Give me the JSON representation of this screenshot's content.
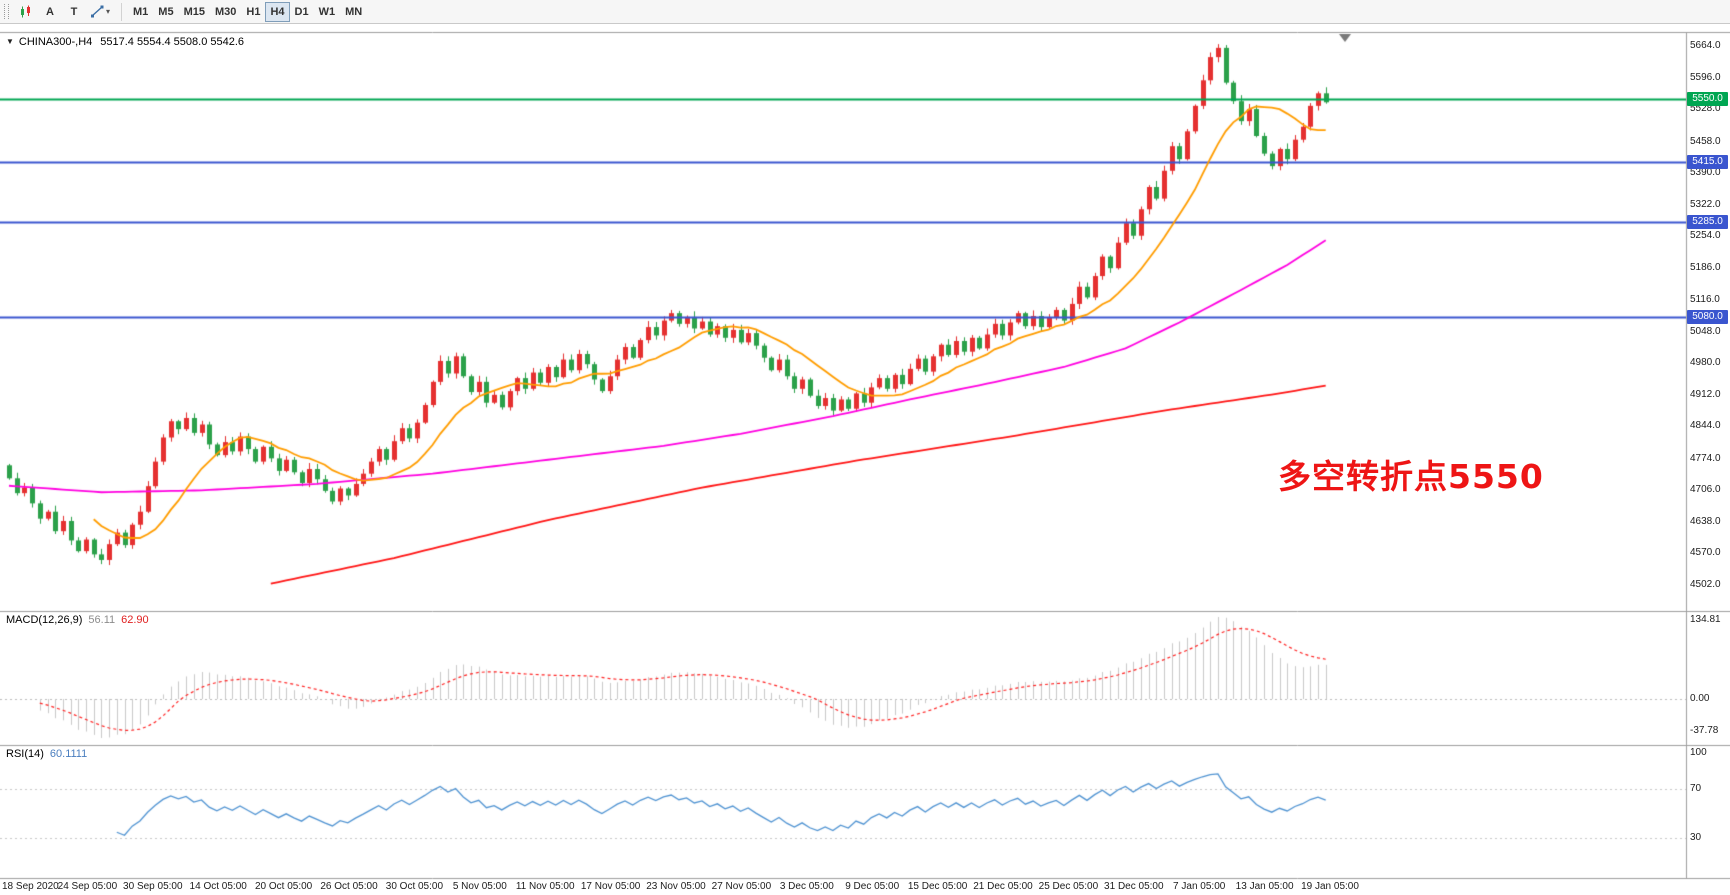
{
  "toolbar": {
    "tool_a": "A",
    "tool_t": "T",
    "active": "H4",
    "timeframes": [
      {
        "label": "M1"
      },
      {
        "label": "M5"
      },
      {
        "label": "M15"
      },
      {
        "label": "M30"
      },
      {
        "label": "H1"
      },
      {
        "label": "H4"
      },
      {
        "label": "D1"
      },
      {
        "label": "W1"
      },
      {
        "label": "MN"
      }
    ]
  },
  "chart_header": {
    "symbol": "CHINA300-,H4",
    "ohlc": "5517.4 5554.4 5508.0 5542.6"
  },
  "annotation": {
    "text": "多空转折点5550"
  },
  "panels": {
    "macd": {
      "title": "MACD(12,26,9)",
      "value_main": "56.11",
      "value_signal": "62.90",
      "scale_labels": [
        "134.81",
        "0.00",
        "-37.78"
      ]
    },
    "rsi": {
      "title": "RSI(14)",
      "value": "60.1111",
      "scale_labels": [
        "100",
        "70",
        "30"
      ]
    }
  },
  "time_axis": {
    "labels": [
      "18 Sep 2020",
      "24 Sep 05:00",
      "30 Sep 05:00",
      "14 Oct 05:00",
      "20 Oct 05:00",
      "26 Oct 05:00",
      "30 Oct 05:00",
      "5 Nov 05:00",
      "11 Nov 05:00",
      "17 Nov 05:00",
      "23 Nov 05:00",
      "27 Nov 05:00",
      "3 Dec 05:00",
      "9 Dec 05:00",
      "15 Dec 05:00",
      "21 Dec 05:00",
      "25 Dec 05:00",
      "31 Dec 05:00",
      "7 Jan 05:00",
      "13 Jan 05:00",
      "19 Jan 05:00"
    ]
  },
  "chart_data": {
    "type": "candlestick",
    "symbol": "CHINA300-",
    "timeframe": "H4",
    "ohlc_current": {
      "open": 5517.4,
      "high": 5554.4,
      "low": 5508.0,
      "close": 5542.6
    },
    "y_range": [
      4502,
      5664
    ],
    "price_scale_labels": [
      "5664.0",
      "5596.0",
      "5528.0",
      "5458.0",
      "5390.0",
      "5322.0",
      "5254.0",
      "5186.0",
      "5116.0",
      "5048.0",
      "4980.0",
      "4912.0",
      "4844.0",
      "4774.0",
      "4706.0",
      "4638.0",
      "4570.0",
      "4502.0"
    ],
    "hlines": [
      {
        "value": 5550.0,
        "label": "5550.0",
        "color": "#00a652",
        "width": 2
      },
      {
        "value": 5415.0,
        "label": "5415.0",
        "color": "#3a55cf",
        "width": 2
      },
      {
        "value": 5285.0,
        "label": "5285.0",
        "color": "#3a55cf",
        "width": 2
      },
      {
        "value": 5080.0,
        "label": "5080.0",
        "color": "#3a55cf",
        "width": 2
      }
    ],
    "first_open": 4760,
    "closes": [
      4732,
      4700,
      4712,
      4678,
      4645,
      4660,
      4618,
      4640,
      4598,
      4575,
      4600,
      4568,
      4556,
      4590,
      4615,
      4588,
      4632,
      4660,
      4715,
      4768,
      4820,
      4855,
      4838,
      4862,
      4830,
      4848,
      4805,
      4782,
      4810,
      4790,
      4822,
      4795,
      4768,
      4800,
      4775,
      4748,
      4772,
      4745,
      4722,
      4752,
      4730,
      4705,
      4682,
      4710,
      4695,
      4720,
      4742,
      4768,
      4795,
      4772,
      4812,
      4840,
      4818,
      4852,
      4890,
      4940,
      4985,
      4958,
      4995,
      4952,
      4918,
      4940,
      4895,
      4912,
      4885,
      4920,
      4948,
      4925,
      4960,
      4938,
      4972,
      4950,
      4988,
      4965,
      5000,
      4978,
      4945,
      4920,
      4952,
      4988,
      5015,
      4992,
      5030,
      5058,
      5040,
      5072,
      5088,
      5065,
      5080,
      5055,
      5070,
      5042,
      5060,
      5035,
      5052,
      5025,
      5045,
      5018,
      4992,
      4965,
      4988,
      4952,
      4925,
      4945,
      4910,
      4888,
      4905,
      4878,
      4902,
      4882,
      4915,
      4895,
      4928,
      4948,
      4925,
      4955,
      4935,
      4968,
      4990,
      4962,
      4995,
      5020,
      4998,
      5028,
      5005,
      5035,
      5012,
      5042,
      5065,
      5040,
      5068,
      5088,
      5060,
      5082,
      5058,
      5078,
      5095,
      5072,
      5108,
      5145,
      5122,
      5168,
      5210,
      5185,
      5240,
      5282,
      5255,
      5312,
      5360,
      5335,
      5395,
      5448,
      5420,
      5480,
      5535,
      5590,
      5640,
      5660,
      5585,
      5545,
      5502,
      5528,
      5470,
      5432,
      5405,
      5442,
      5420,
      5462,
      5490,
      5535,
      5562,
      5542.6
    ],
    "ma_fast_period": 12,
    "ma_mid_points": [
      [
        0,
        4716
      ],
      [
        12,
        4702
      ],
      [
        25,
        4706
      ],
      [
        40,
        4720
      ],
      [
        55,
        4742
      ],
      [
        70,
        4772
      ],
      [
        85,
        4802
      ],
      [
        95,
        4828
      ],
      [
        107,
        4866
      ],
      [
        117,
        4902
      ],
      [
        127,
        4936
      ],
      [
        137,
        4972
      ],
      [
        145,
        5012
      ],
      [
        152,
        5068
      ],
      [
        160,
        5138
      ],
      [
        166,
        5192
      ],
      [
        171,
        5245
      ]
    ],
    "ma_slow_points": [
      [
        34,
        4505
      ],
      [
        50,
        4560
      ],
      [
        70,
        4642
      ],
      [
        90,
        4712
      ],
      [
        110,
        4770
      ],
      [
        130,
        4822
      ],
      [
        150,
        4878
      ],
      [
        165,
        4915
      ],
      [
        171,
        4932
      ]
    ],
    "macd": {
      "fast": 12,
      "slow": 26,
      "signal": 9,
      "scale_values": [
        134.81,
        0.0,
        -37.78
      ]
    },
    "rsi": {
      "period": 14,
      "levels": [
        100,
        70,
        30
      ]
    },
    "colors": {
      "bull": "#e53030",
      "bear": "#2ba14a",
      "ma_fast": "#ff9d00",
      "ma_mid": "#ff00e1",
      "ma_slow": "#ff1414",
      "macd_hist": "#c9c9c9",
      "macd_signal": "#ff2020",
      "macd_value_main": "#8c8c8c",
      "macd_value_signal": "#e02020",
      "rsi_line": "#4f93d2",
      "rsi_value": "#4a7ebf",
      "annotation": "#ee1515",
      "divider": "#9e9e9e"
    }
  }
}
